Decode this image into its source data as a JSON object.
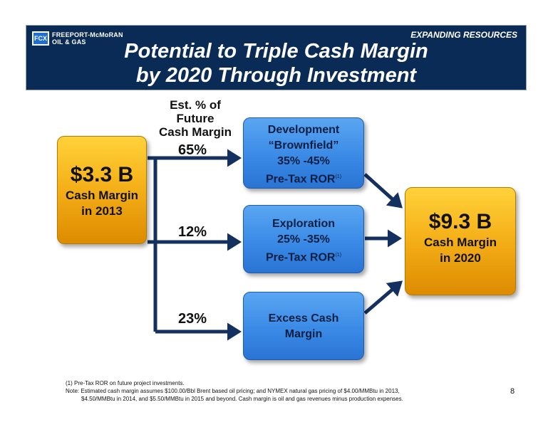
{
  "header": {
    "logo_mark": "FCX",
    "logo_line1": "FREEPORT-McMoRAN",
    "logo_line2": "OIL & GAS",
    "tagline": "EXPANDING RESOURCES",
    "title_line1": "Potential to Triple Cash Margin",
    "title_line2": "by 2020 Through Investment"
  },
  "source": {
    "value": "$3.3 B",
    "label_line1": "Cash Margin",
    "label_line2": "in 2013"
  },
  "est_label": {
    "line1": "Est. % of",
    "line2": "Future",
    "line3": "Cash Margin"
  },
  "branches": [
    {
      "pct": "65%",
      "line1": "Development",
      "line2": "“Brownfield”",
      "line3": "35% -45%",
      "line4": "Pre-Tax ROR",
      "footnote": "(1)"
    },
    {
      "pct": "12%",
      "line1": "Exploration",
      "line2": "25% -35%",
      "line3": "Pre-Tax ROR",
      "footnote": "(1)"
    },
    {
      "pct": "23%",
      "line1": "Excess Cash",
      "line2": "Margin"
    }
  ],
  "target": {
    "value": "$9.3 B",
    "label_line1": "Cash Margin",
    "label_line2": "in 2020"
  },
  "notes": {
    "line1": "(1) Pre-Tax ROR on future project investments.",
    "line2": "Note: Estimated cash margin assumes $100.00/Bbl Brent based oil pricing; and NYMEX natural gas pricing of $4.00/MMBtu in 2013,",
    "line3": "$4.50/MMBtu in 2014, and $5.50/MMBtu in 2015 and beyond. Cash margin is oil and gas revenues minus production expenses."
  },
  "page_number": "8",
  "colors": {
    "header_bg": "#0b2b57",
    "arrow": "#14305e",
    "gold": "#f6b21a",
    "blue": "#3a8ae6"
  }
}
